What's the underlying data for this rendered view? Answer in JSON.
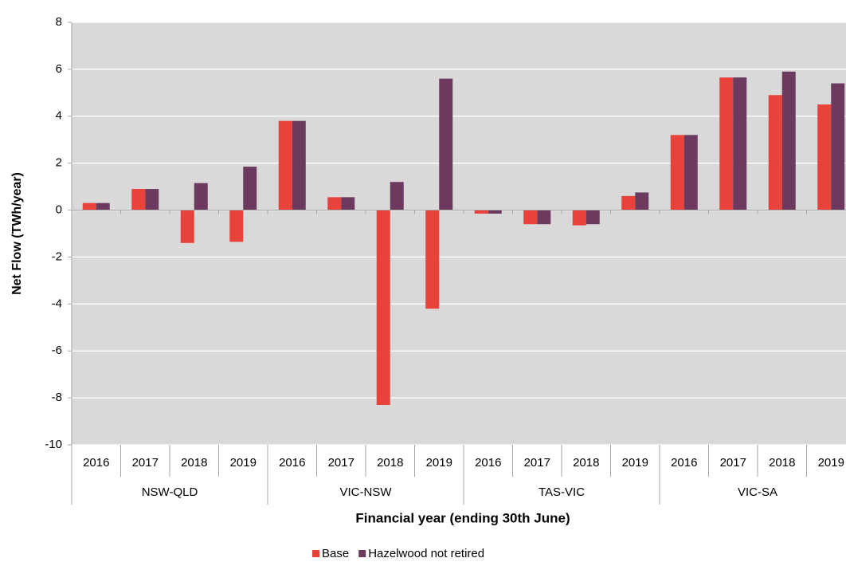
{
  "chart_data": {
    "type": "bar",
    "y_label": "Net Flow (TWh/year)",
    "x_label": "Financial year (ending 30th June)",
    "categories": [
      "2016",
      "2017",
      "2018",
      "2019",
      "2016",
      "2017",
      "2018",
      "2019",
      "2016",
      "2017",
      "2018",
      "2019",
      "2016",
      "2017",
      "2018",
      "2019"
    ],
    "groups": [
      "NSW-QLD",
      "VIC-NSW",
      "TAS-VIC",
      "VIC-SA"
    ],
    "series": [
      {
        "name": "Base",
        "color": "#e8423a",
        "values": [
          0.3,
          0.9,
          -1.4,
          -1.35,
          3.8,
          0.55,
          -8.3,
          -4.2,
          -0.15,
          -0.6,
          -0.65,
          0.6,
          3.2,
          5.65,
          4.9,
          4.5
        ]
      },
      {
        "name": "Hazelwood not retired",
        "color": "#6b3a5e",
        "values": [
          0.3,
          0.9,
          1.15,
          1.85,
          3.8,
          0.55,
          1.2,
          5.6,
          -0.15,
          -0.6,
          -0.6,
          0.75,
          3.2,
          5.65,
          5.9,
          5.4
        ]
      }
    ],
    "ylim": [
      -10,
      8
    ],
    "yticks": [
      -10,
      -8,
      -6,
      -4,
      -2,
      0,
      2,
      4,
      6,
      8
    ],
    "grid": true,
    "plot_background": "#d9d9d9",
    "legend": "bottom"
  }
}
